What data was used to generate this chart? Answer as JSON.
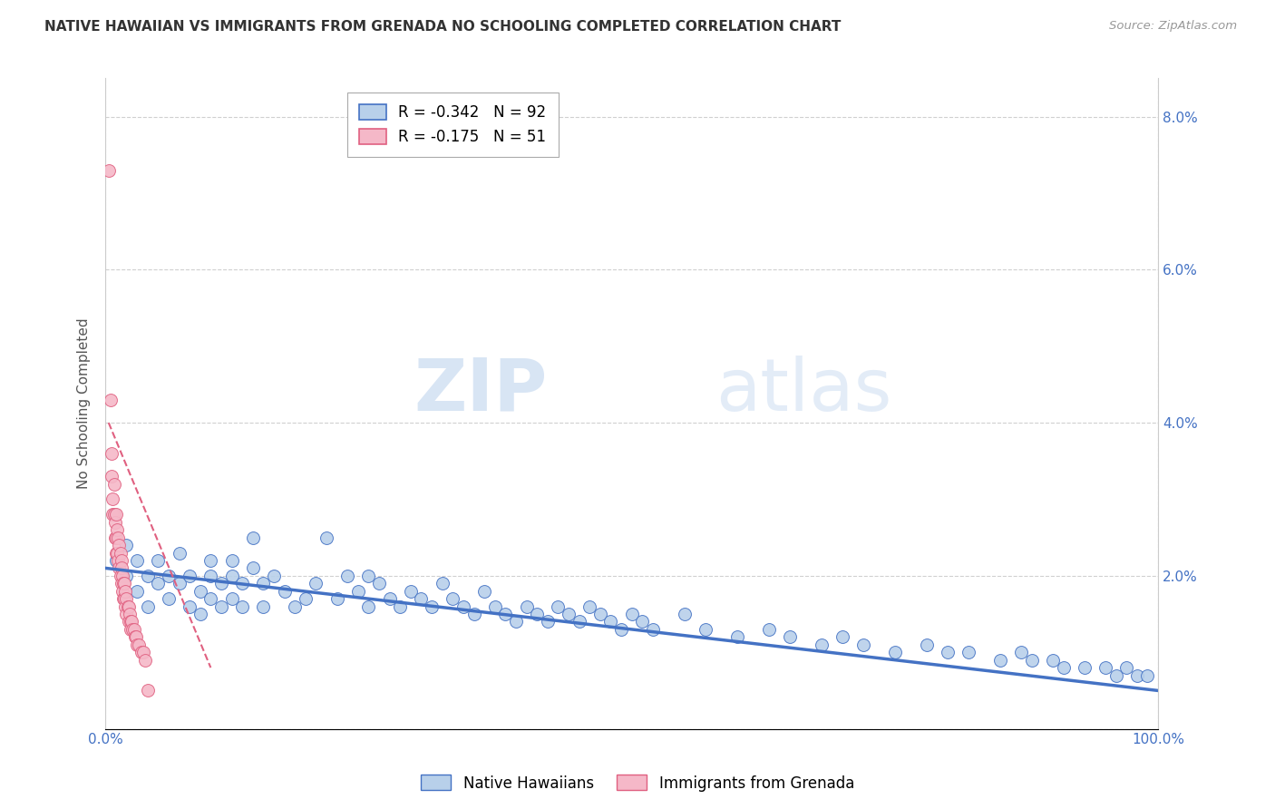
{
  "title": "NATIVE HAWAIIAN VS IMMIGRANTS FROM GRENADA NO SCHOOLING COMPLETED CORRELATION CHART",
  "source": "Source: ZipAtlas.com",
  "ylabel": "No Schooling Completed",
  "series1_label": "Native Hawaiians",
  "series2_label": "Immigrants from Grenada",
  "series1_R": -0.342,
  "series1_N": 92,
  "series2_R": -0.175,
  "series2_N": 51,
  "series1_color": "#b8d0ea",
  "series2_color": "#f5b8c8",
  "series1_line_color": "#4472c4",
  "series2_line_color": "#e06080",
  "xlim": [
    0,
    1.0
  ],
  "ylim": [
    0,
    0.085
  ],
  "xtick_positions": [
    0.0,
    1.0
  ],
  "xtick_labels": [
    "0.0%",
    "100.0%"
  ],
  "ytick_positions": [
    0.0,
    0.02,
    0.04,
    0.06,
    0.08
  ],
  "ytick_labels": [
    "",
    "2.0%",
    "4.0%",
    "6.0%",
    "8.0%"
  ],
  "background_color": "#ffffff",
  "watermark_zip": "ZIP",
  "watermark_atlas": "atlas",
  "grid_color": "#d0d0d0",
  "series1_x": [
    0.01,
    0.02,
    0.02,
    0.03,
    0.03,
    0.04,
    0.04,
    0.05,
    0.05,
    0.06,
    0.06,
    0.07,
    0.07,
    0.08,
    0.08,
    0.09,
    0.09,
    0.1,
    0.1,
    0.1,
    0.11,
    0.11,
    0.12,
    0.12,
    0.12,
    0.13,
    0.13,
    0.14,
    0.14,
    0.15,
    0.15,
    0.16,
    0.17,
    0.18,
    0.19,
    0.2,
    0.21,
    0.22,
    0.23,
    0.24,
    0.25,
    0.25,
    0.26,
    0.27,
    0.28,
    0.29,
    0.3,
    0.31,
    0.32,
    0.33,
    0.34,
    0.35,
    0.36,
    0.37,
    0.38,
    0.39,
    0.4,
    0.41,
    0.42,
    0.43,
    0.44,
    0.45,
    0.46,
    0.47,
    0.48,
    0.49,
    0.5,
    0.51,
    0.52,
    0.55,
    0.57,
    0.6,
    0.63,
    0.65,
    0.68,
    0.7,
    0.72,
    0.75,
    0.78,
    0.8,
    0.82,
    0.85,
    0.87,
    0.88,
    0.9,
    0.91,
    0.93,
    0.95,
    0.96,
    0.97,
    0.98,
    0.99
  ],
  "series1_y": [
    0.022,
    0.02,
    0.024,
    0.018,
    0.022,
    0.016,
    0.02,
    0.019,
    0.022,
    0.017,
    0.02,
    0.023,
    0.019,
    0.016,
    0.02,
    0.018,
    0.015,
    0.022,
    0.017,
    0.02,
    0.019,
    0.016,
    0.022,
    0.017,
    0.02,
    0.019,
    0.016,
    0.025,
    0.021,
    0.019,
    0.016,
    0.02,
    0.018,
    0.016,
    0.017,
    0.019,
    0.025,
    0.017,
    0.02,
    0.018,
    0.016,
    0.02,
    0.019,
    0.017,
    0.016,
    0.018,
    0.017,
    0.016,
    0.019,
    0.017,
    0.016,
    0.015,
    0.018,
    0.016,
    0.015,
    0.014,
    0.016,
    0.015,
    0.014,
    0.016,
    0.015,
    0.014,
    0.016,
    0.015,
    0.014,
    0.013,
    0.015,
    0.014,
    0.013,
    0.015,
    0.013,
    0.012,
    0.013,
    0.012,
    0.011,
    0.012,
    0.011,
    0.01,
    0.011,
    0.01,
    0.01,
    0.009,
    0.01,
    0.009,
    0.009,
    0.008,
    0.008,
    0.008,
    0.007,
    0.008,
    0.007,
    0.007
  ],
  "series2_x": [
    0.003,
    0.005,
    0.006,
    0.006,
    0.007,
    0.007,
    0.008,
    0.008,
    0.009,
    0.009,
    0.01,
    0.01,
    0.01,
    0.011,
    0.011,
    0.012,
    0.012,
    0.013,
    0.013,
    0.014,
    0.014,
    0.015,
    0.015,
    0.015,
    0.016,
    0.016,
    0.017,
    0.017,
    0.018,
    0.018,
    0.019,
    0.019,
    0.02,
    0.02,
    0.021,
    0.022,
    0.022,
    0.023,
    0.024,
    0.024,
    0.025,
    0.026,
    0.027,
    0.028,
    0.029,
    0.03,
    0.032,
    0.034,
    0.036,
    0.038,
    0.04
  ],
  "series2_y": [
    0.073,
    0.043,
    0.036,
    0.033,
    0.03,
    0.028,
    0.032,
    0.028,
    0.027,
    0.025,
    0.028,
    0.025,
    0.023,
    0.026,
    0.023,
    0.025,
    0.022,
    0.024,
    0.021,
    0.023,
    0.02,
    0.022,
    0.019,
    0.021,
    0.02,
    0.018,
    0.019,
    0.017,
    0.019,
    0.017,
    0.018,
    0.016,
    0.017,
    0.015,
    0.016,
    0.016,
    0.014,
    0.015,
    0.014,
    0.013,
    0.014,
    0.013,
    0.013,
    0.012,
    0.012,
    0.011,
    0.011,
    0.01,
    0.01,
    0.009,
    0.005
  ],
  "series1_trend_x": [
    0.0,
    1.0
  ],
  "series1_trend_y": [
    0.021,
    0.005
  ],
  "series2_trend_x": [
    0.003,
    0.1
  ],
  "series2_trend_y": [
    0.04,
    0.008
  ]
}
